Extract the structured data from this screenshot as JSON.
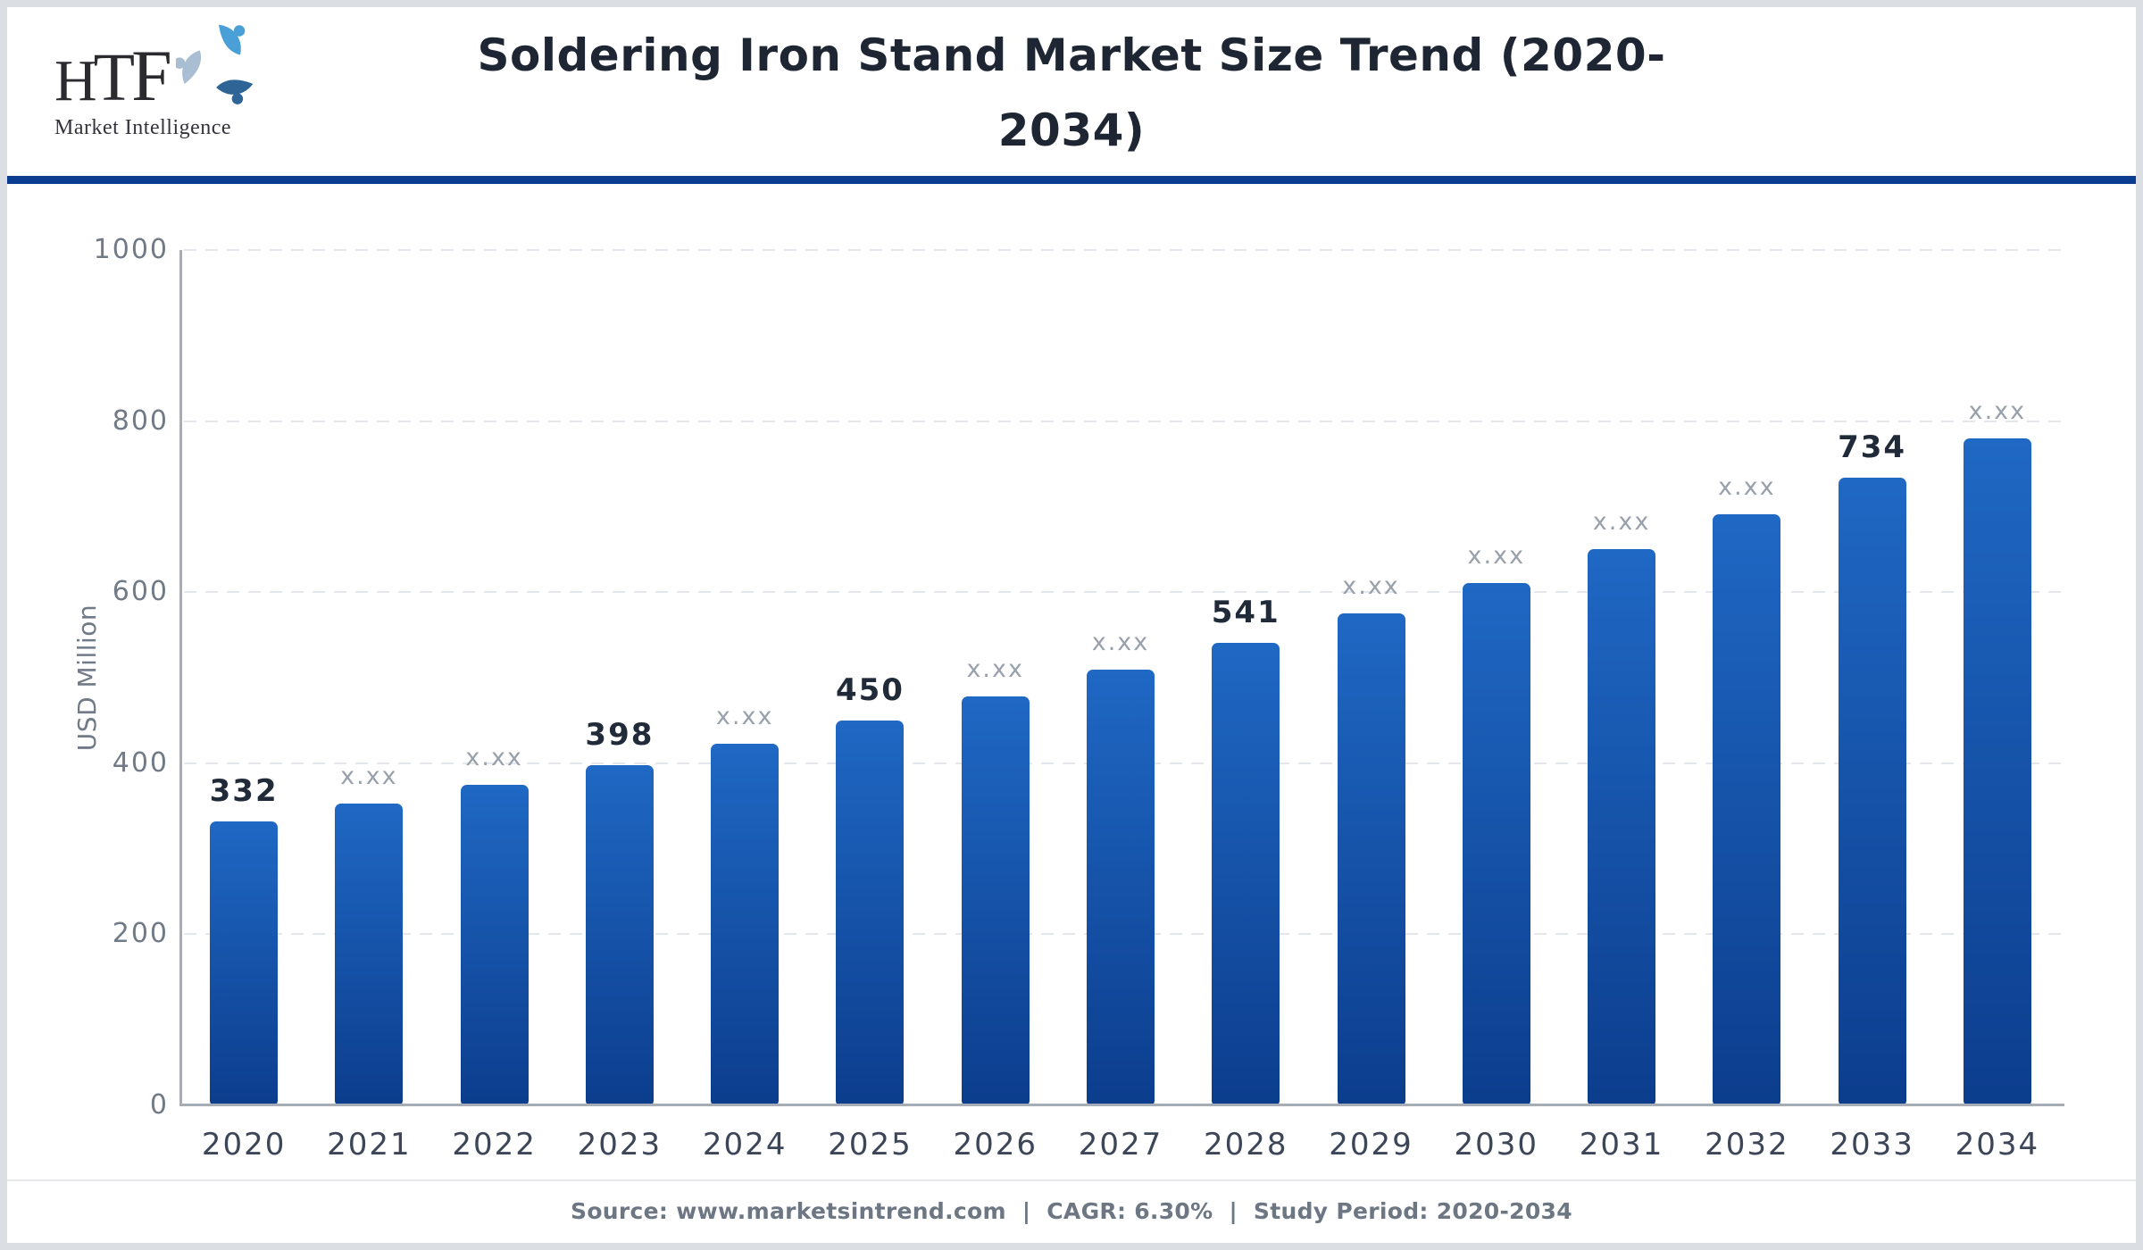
{
  "header": {
    "logo": {
      "brand": "HTF",
      "brand_letters": [
        "H",
        "T",
        "F"
      ],
      "tagline": "Market Intelligence",
      "swirl_colors": {
        "top": "#4aa0d6",
        "right": "#2e6496",
        "left": "#a9bed2"
      }
    },
    "title": "Soldering Iron Stand Market Size Trend (2020-2034)",
    "title_lines": [
      "Soldering Iron Stand Market Size Trend (2020-",
      "2034)"
    ]
  },
  "chart_data": {
    "type": "bar",
    "title": "Soldering Iron Stand Market Size Trend (2020-2034)",
    "ylabel": "USD Million",
    "xlabel": "",
    "ylim": [
      0,
      1000
    ],
    "yticks": [
      0,
      200,
      400,
      600,
      800,
      1000
    ],
    "grid": "horizontal-dashed",
    "legend": "none",
    "categories": [
      "2020",
      "2021",
      "2022",
      "2023",
      "2024",
      "2025",
      "2026",
      "2027",
      "2028",
      "2029",
      "2030",
      "2031",
      "2032",
      "2033",
      "2034"
    ],
    "values": [
      332,
      353,
      375,
      398,
      423,
      450,
      478,
      509,
      541,
      575,
      611,
      650,
      691,
      734,
      780
    ],
    "bar_labels": [
      "332",
      "x.xx",
      "x.xx",
      "398",
      "x.xx",
      "450",
      "x.xx",
      "x.xx",
      "541",
      "x.xx",
      "x.xx",
      "x.xx",
      "x.xx",
      "734",
      "x.xx"
    ],
    "colors": {
      "bar_gradient_top": "#1f68c4",
      "bar_gradient_bottom": "#0c3d8d",
      "value_label": "#202a38",
      "estimate_label": "#98a0ac",
      "axis_line": "#a6adb6",
      "gridline": "#e3e6ea",
      "tick_label": "#717a87",
      "year_label": "#3c4658",
      "header_rule": "#0b3c90"
    }
  },
  "footer": {
    "text": "Source: www.marketsintrend.com  |  CAGR: 6.30%  |  Study Period: 2020-2034"
  }
}
